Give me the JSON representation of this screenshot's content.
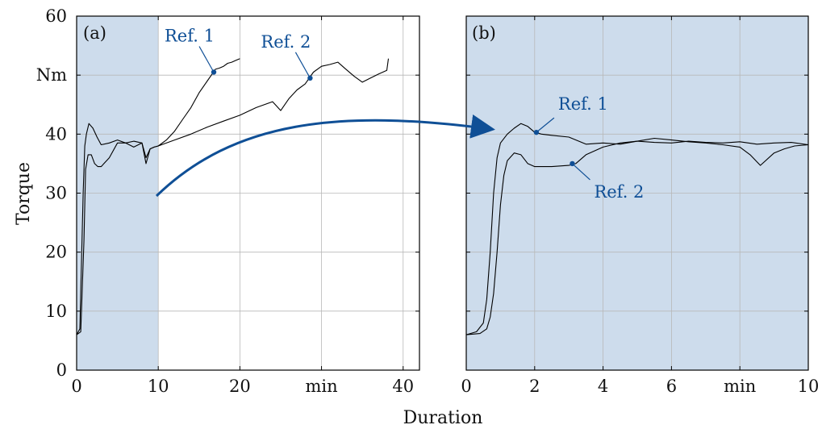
{
  "chart_data": [
    {
      "panel_label": "(a)",
      "type": "line",
      "xlim": [
        0,
        42
      ],
      "ylim": [
        0,
        60
      ],
      "xticks": [
        "0",
        "10",
        "20",
        "min",
        "40"
      ],
      "yticks": [
        "0",
        "10",
        "20",
        "30",
        "40",
        "Nm",
        "60"
      ],
      "highlight_region": [
        0,
        10
      ],
      "series": [
        {
          "name": "Ref. 1",
          "x": [
            0,
            0.4,
            0.8,
            1.0,
            1.2,
            1.5,
            2.0,
            2.5,
            3.0,
            4.0,
            5.0,
            6.0,
            7.0,
            8.0,
            8.5,
            9.0,
            9.5,
            10.0,
            11,
            12,
            13,
            14,
            15,
            16,
            16.5,
            17,
            17.5,
            18,
            18.5,
            19,
            19.5,
            20
          ],
          "y": [
            6,
            7,
            30,
            38,
            40,
            41.8,
            41,
            39.5,
            38.2,
            38.5,
            39,
            38.5,
            37.8,
            38.5,
            36,
            37.5,
            37.8,
            38,
            39,
            40.5,
            42.5,
            44.5,
            47,
            49,
            50,
            51,
            51.2,
            51.5,
            52,
            52.2,
            52.5,
            52.8
          ]
        },
        {
          "name": "Ref. 2",
          "x": [
            0,
            0.5,
            0.9,
            1.1,
            1.4,
            1.8,
            2.2,
            2.6,
            3.0,
            4.0,
            5.0,
            6.0,
            7.0,
            8.0,
            8.5,
            9.0,
            9.5,
            10,
            12,
            14,
            16,
            18,
            20,
            22,
            24,
            25,
            26,
            27,
            28,
            28.5,
            29,
            30,
            31,
            32,
            33,
            34,
            35,
            36,
            37,
            38,
            38.2
          ],
          "y": [
            6,
            6.5,
            22,
            34,
            36.5,
            36.5,
            35,
            34.5,
            34.5,
            36,
            38.5,
            38.5,
            38.8,
            38.5,
            35,
            37.5,
            37.8,
            38,
            39,
            40,
            41.2,
            42.2,
            43.2,
            44.5,
            45.5,
            44,
            46,
            47.5,
            48.5,
            49.5,
            50.5,
            51.5,
            51.8,
            52.2,
            51,
            49.8,
            48.8,
            49.5,
            50.2,
            50.8,
            52.8
          ]
        }
      ],
      "annotations": [
        {
          "text": "Ref. 1",
          "x": 16.8,
          "y": 50.5
        },
        {
          "text": "Ref. 2",
          "x": 28.6,
          "y": 49.5
        }
      ]
    },
    {
      "panel_label": "(b)",
      "type": "line",
      "xlim": [
        0,
        10
      ],
      "ylim": [
        0,
        60
      ],
      "xticks": [
        "0",
        "2",
        "4",
        "6",
        "min",
        "10"
      ],
      "highlight_region": [
        0,
        10
      ],
      "series": [
        {
          "name": "Ref. 1",
          "x": [
            0,
            0.3,
            0.5,
            0.6,
            0.7,
            0.8,
            0.9,
            1.0,
            1.2,
            1.4,
            1.6,
            1.8,
            2.0,
            2.2,
            2.5,
            3.0,
            3.5,
            4.0,
            4.5,
            5.0,
            5.5,
            6.0,
            6.5,
            7.0,
            7.5,
            8.0,
            8.5,
            9.0,
            9.5,
            10.0
          ],
          "y": [
            6,
            6.5,
            8,
            12,
            20,
            30,
            36,
            38.5,
            40,
            41,
            41.8,
            41.3,
            40.3,
            40,
            39.8,
            39.5,
            38.3,
            38.5,
            38.3,
            38.8,
            38.6,
            38.5,
            38.8,
            38.6,
            38.5,
            38.7,
            38.3,
            38.5,
            38.6,
            38.2
          ]
        },
        {
          "name": "Ref. 2",
          "x": [
            0,
            0.4,
            0.6,
            0.7,
            0.8,
            0.9,
            1.0,
            1.1,
            1.2,
            1.4,
            1.6,
            1.8,
            2.0,
            2.5,
            3.0,
            3.2,
            3.5,
            4.0,
            4.5,
            5.0,
            5.5,
            6.0,
            6.5,
            7.0,
            7.5,
            8.0,
            8.3,
            8.6,
            9.0,
            9.3,
            9.6,
            10.0
          ],
          "y": [
            6,
            6.2,
            7,
            9,
            13,
            20,
            28,
            33,
            35.5,
            36.8,
            36.5,
            35,
            34.5,
            34.5,
            34.7,
            35,
            36.5,
            37.8,
            38.5,
            38.8,
            39.3,
            39,
            38.7,
            38.5,
            38.2,
            37.8,
            36.5,
            34.7,
            36.8,
            37.5,
            38,
            38.2
          ]
        }
      ],
      "annotations": [
        {
          "text": "Ref. 1",
          "x": 2.05,
          "y": 40.3
        },
        {
          "text": "Ref. 2",
          "x": 3.1,
          "y": 35.0
        }
      ]
    }
  ],
  "axes": {
    "ylabel": "Torque",
    "xlabel": "Duration"
  },
  "colors": {
    "highlight": "#cddcec",
    "grid": "#b8b8b8",
    "line": "#000000",
    "accent": "#0f4f96"
  }
}
